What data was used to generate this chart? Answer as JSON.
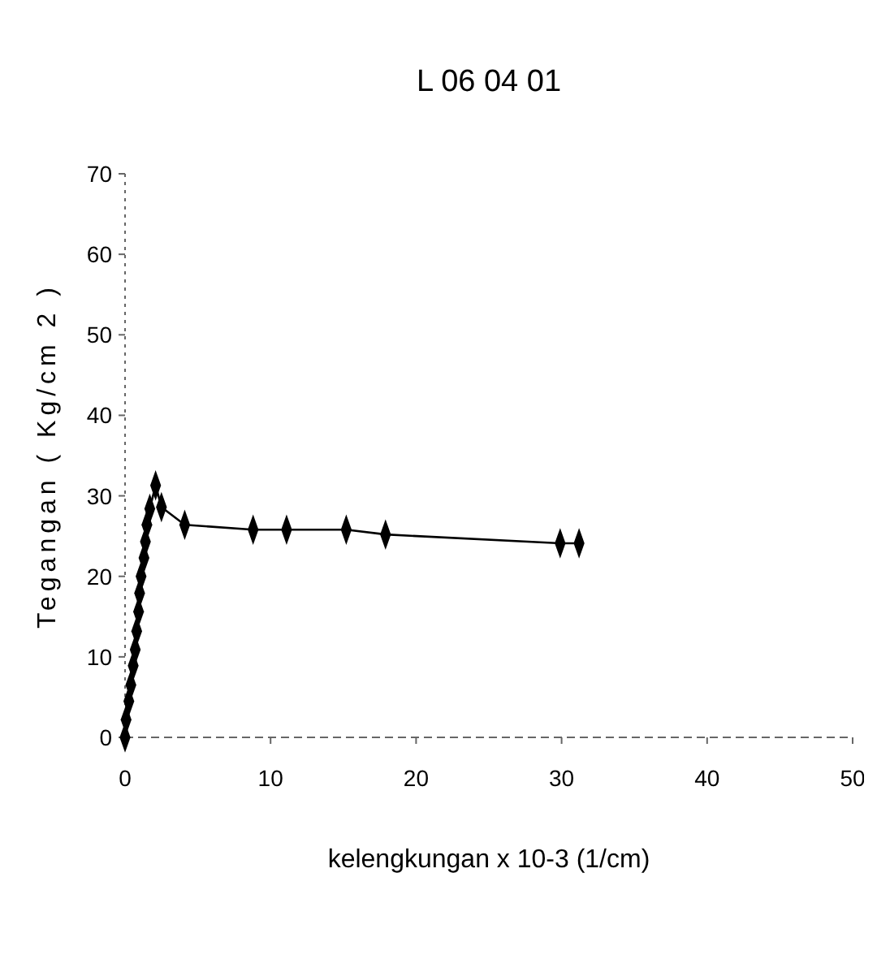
{
  "chart_data": {
    "type": "line",
    "title": "L 06 04 01",
    "xlabel": "kelengkungan x 10-3 (1/cm)",
    "ylabel": "Tegangan ( Kg/cm 2 )",
    "series": [
      {
        "color": "#000000",
        "x": [
          0,
          0.07,
          0.26,
          0.4,
          0.56,
          0.7,
          0.8,
          0.93,
          1.0,
          1.1,
          1.3,
          1.4,
          1.5,
          1.7,
          2.1,
          2.5,
          4.1,
          8.8,
          11.1,
          15.2,
          17.9,
          29.9,
          31.2
        ],
        "values": [
          0,
          2.2,
          4.5,
          6.5,
          8.9,
          10.9,
          13.2,
          15.6,
          17.9,
          20,
          22.3,
          24.3,
          26.4,
          28.4,
          31.3,
          28.6,
          26.4,
          25.8,
          25.8,
          25.8,
          25.2,
          24.1,
          24.1
        ]
      }
    ],
    "xlim": [
      0,
      50
    ],
    "ylim": [
      0,
      70
    ],
    "xticks": [
      0,
      10,
      20,
      30,
      40,
      50
    ],
    "yticks": [
      0,
      10,
      20,
      30,
      40,
      50,
      60,
      70
    ],
    "grid": false,
    "marker": "diamond",
    "line_style": "solid"
  }
}
